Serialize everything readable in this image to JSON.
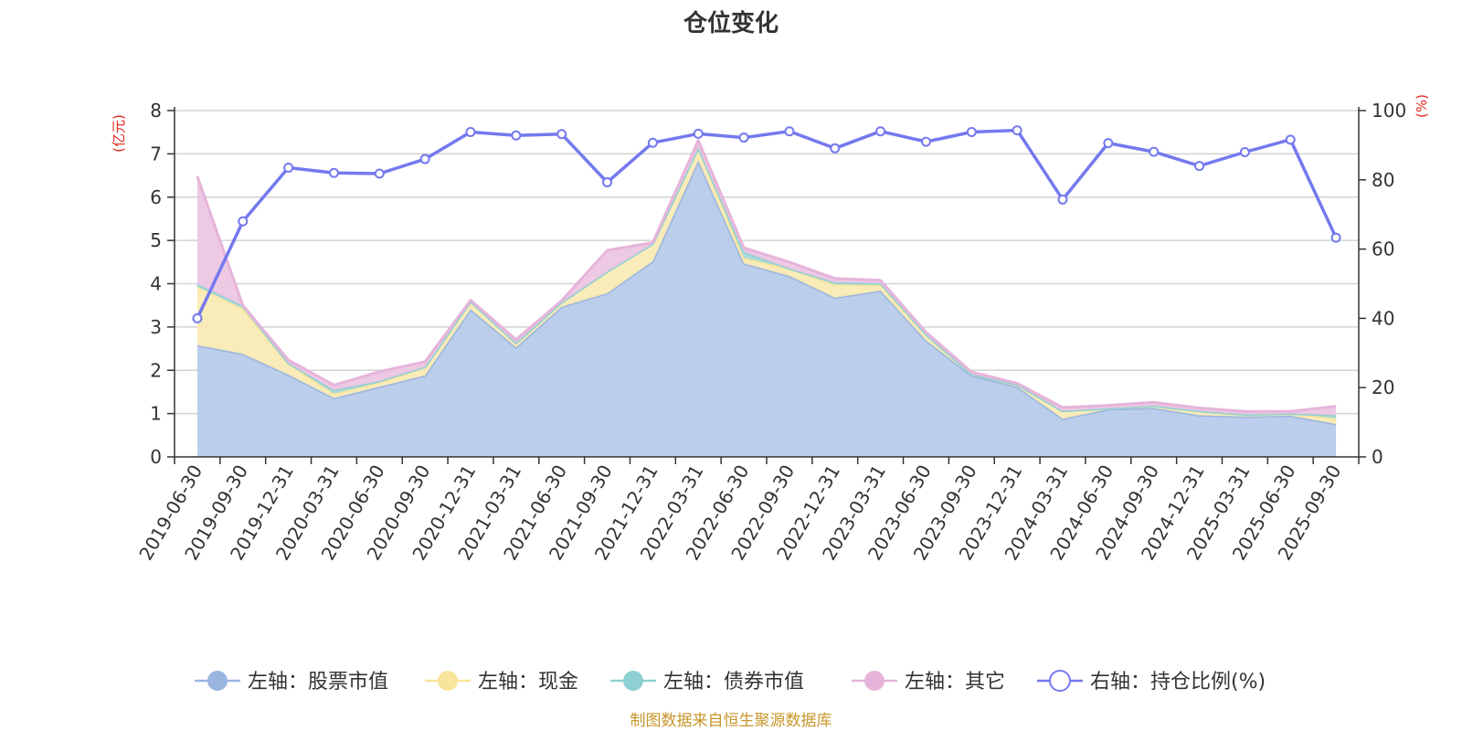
{
  "chart_data": {
    "type": "area",
    "title": "仓位变化",
    "categories": [
      "2019-06-30",
      "2019-09-30",
      "2019-12-31",
      "2020-03-31",
      "2020-06-30",
      "2020-09-30",
      "2020-12-31",
      "2021-03-31",
      "2021-06-30",
      "2021-09-30",
      "2021-12-31",
      "2022-03-31",
      "2022-06-30",
      "2022-09-30",
      "2022-12-31",
      "2023-03-31",
      "2023-06-30",
      "2023-09-30",
      "2023-12-31",
      "2024-03-31",
      "2024-06-30",
      "2024-09-30",
      "2024-12-31",
      "2025-03-31",
      "2025-06-30",
      "2025-09-30"
    ],
    "left_axis": {
      "unit": "(亿元)",
      "ylim": [
        0,
        8
      ],
      "ticks": [
        "0",
        "1",
        "2",
        "3",
        "4",
        "5",
        "6",
        "7",
        "8"
      ]
    },
    "right_axis": {
      "unit": "(%)",
      "ylim": [
        0,
        100
      ],
      "ticks": [
        "0",
        "20",
        "40",
        "60",
        "80",
        "100"
      ]
    },
    "series": [
      {
        "name": "左轴：股票市值",
        "axis": "left",
        "stack": true,
        "color": "#9ab5e0",
        "fill": "#b7cbea",
        "values": [
          2.58,
          2.38,
          1.9,
          1.36,
          1.62,
          1.88,
          3.41,
          2.53,
          3.47,
          3.78,
          4.52,
          6.84,
          4.47,
          4.18,
          3.68,
          3.84,
          2.69,
          1.88,
          1.62,
          0.88,
          1.1,
          1.13,
          0.96,
          0.93,
          0.95,
          0.76
        ]
      },
      {
        "name": "左轴：现金",
        "axis": "left",
        "stack": true,
        "color": "#f8e49a",
        "fill": "#faebb4",
        "values": [
          1.35,
          1.05,
          0.25,
          0.1,
          0.1,
          0.2,
          0.18,
          0.1,
          0.1,
          0.5,
          0.4,
          0.3,
          0.13,
          0.17,
          0.3,
          0.13,
          0.14,
          0.03,
          0.05,
          0.18,
          0.02,
          0.05,
          0.1,
          0.05,
          0.05,
          0.13
        ]
      },
      {
        "name": "左轴：债券市值",
        "axis": "left",
        "stack": true,
        "color": "#8fd1d2",
        "fill": "#a8dada",
        "values": [
          0.06,
          0.06,
          0.02,
          0.08,
          0.03,
          0.0,
          0.0,
          0.0,
          0.0,
          0.0,
          0.0,
          0.0,
          0.13,
          0.0,
          0.05,
          0.04,
          0.0,
          0.0,
          0.0,
          0.0,
          0.0,
          0.0,
          0.0,
          0.0,
          0.0,
          0.07
        ]
      },
      {
        "name": "左轴：其它",
        "axis": "left",
        "stack": true,
        "color": "#e6b4da",
        "fill": "#ecc6e1",
        "values": [
          2.49,
          0.01,
          0.07,
          0.12,
          0.22,
          0.12,
          0.03,
          0.08,
          0.04,
          0.49,
          0.03,
          0.17,
          0.1,
          0.15,
          0.09,
          0.07,
          0.05,
          0.05,
          0.03,
          0.08,
          0.07,
          0.08,
          0.07,
          0.07,
          0.05,
          0.21
        ]
      },
      {
        "name": "右轴：持仓比例(%)",
        "axis": "right",
        "type": "line",
        "color": "#7479ee",
        "values": [
          40.0,
          68.0,
          83.5,
          82.0,
          81.8,
          86.0,
          93.8,
          92.8,
          93.2,
          79.3,
          90.7,
          93.3,
          92.2,
          94.0,
          89.1,
          94.0,
          91.0,
          93.8,
          94.3,
          74.3,
          90.6,
          88.1,
          84.0,
          88.0,
          91.6,
          63.3
        ]
      }
    ],
    "legend_position": "bottom",
    "grid": true
  },
  "footer": {
    "source": "制图数据来自恒生聚源数据库"
  }
}
